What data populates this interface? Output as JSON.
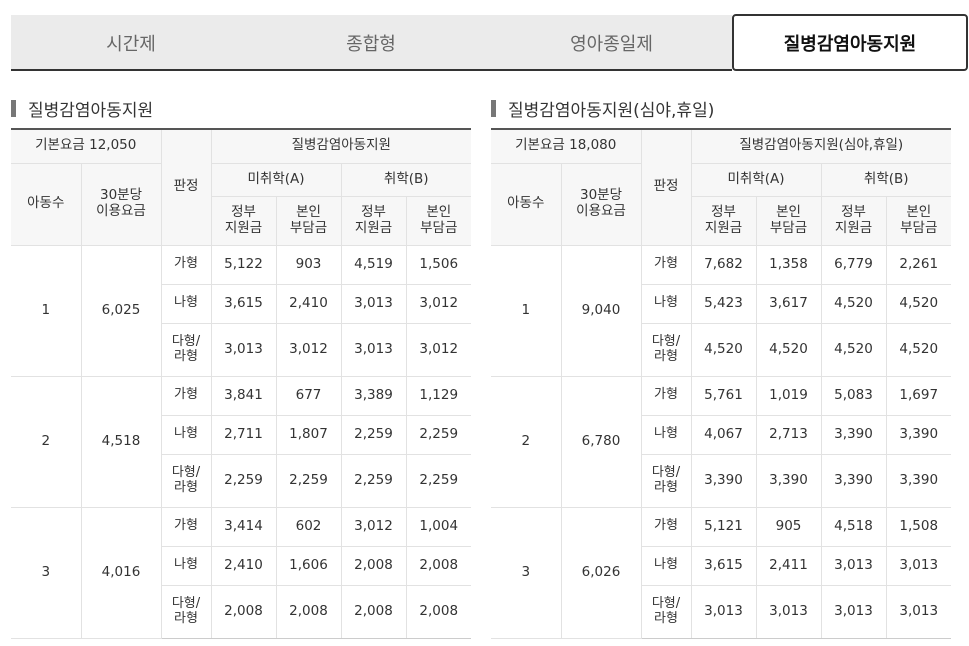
{
  "tabs": [
    {
      "label": "시간제"
    },
    {
      "label": "종합형"
    },
    {
      "label": "영아종일제"
    },
    {
      "label": "질병감염아동지원"
    }
  ],
  "sections": [
    {
      "title": "질병감염아동지원",
      "base_fee": "기본요금 12,050",
      "group_header": "질병감염아동지원",
      "col_children": "아동수",
      "col_fee": "30분당\n이용요금",
      "col_grade": "판정",
      "col_a": "미취학(A)",
      "col_b": "취학(B)",
      "col_gov": "정부\n지원금",
      "col_self": "본인\n부담금",
      "groups": [
        {
          "children": "1",
          "fee": "6,025",
          "rows": [
            {
              "grade": "가형",
              "a_gov": "5,122",
              "a_self": "903",
              "b_gov": "4,519",
              "b_self": "1,506"
            },
            {
              "grade": "나형",
              "a_gov": "3,615",
              "a_self": "2,410",
              "b_gov": "3,013",
              "b_self": "3,012"
            },
            {
              "grade": "다형/\n라형",
              "a_gov": "3,013",
              "a_self": "3,012",
              "b_gov": "3,013",
              "b_self": "3,012"
            }
          ]
        },
        {
          "children": "2",
          "fee": "4,518",
          "rows": [
            {
              "grade": "가형",
              "a_gov": "3,841",
              "a_self": "677",
              "b_gov": "3,389",
              "b_self": "1,129"
            },
            {
              "grade": "나형",
              "a_gov": "2,711",
              "a_self": "1,807",
              "b_gov": "2,259",
              "b_self": "2,259"
            },
            {
              "grade": "다형/\n라형",
              "a_gov": "2,259",
              "a_self": "2,259",
              "b_gov": "2,259",
              "b_self": "2,259"
            }
          ]
        },
        {
          "children": "3",
          "fee": "4,016",
          "rows": [
            {
              "grade": "가형",
              "a_gov": "3,414",
              "a_self": "602",
              "b_gov": "3,012",
              "b_self": "1,004"
            },
            {
              "grade": "나형",
              "a_gov": "2,410",
              "a_self": "1,606",
              "b_gov": "2,008",
              "b_self": "2,008"
            },
            {
              "grade": "다형/\n라형",
              "a_gov": "2,008",
              "a_self": "2,008",
              "b_gov": "2,008",
              "b_self": "2,008"
            }
          ]
        }
      ]
    },
    {
      "title": "질병감염아동지원(심야,휴일)",
      "base_fee": "기본요금 18,080",
      "group_header": "질병감염아동지원(심야,휴일)",
      "col_children": "아동수",
      "col_fee": "30분당\n이용요금",
      "col_grade": "판정",
      "col_a": "미취학(A)",
      "col_b": "취학(B)",
      "col_gov": "정부\n지원금",
      "col_self": "본인\n부담금",
      "groups": [
        {
          "children": "1",
          "fee": "9,040",
          "rows": [
            {
              "grade": "가형",
              "a_gov": "7,682",
              "a_self": "1,358",
              "b_gov": "6,779",
              "b_self": "2,261"
            },
            {
              "grade": "나형",
              "a_gov": "5,423",
              "a_self": "3,617",
              "b_gov": "4,520",
              "b_self": "4,520"
            },
            {
              "grade": "다형/\n라형",
              "a_gov": "4,520",
              "a_self": "4,520",
              "b_gov": "4,520",
              "b_self": "4,520"
            }
          ]
        },
        {
          "children": "2",
          "fee": "6,780",
          "rows": [
            {
              "grade": "가형",
              "a_gov": "5,761",
              "a_self": "1,019",
              "b_gov": "5,083",
              "b_self": "1,697"
            },
            {
              "grade": "나형",
              "a_gov": "4,067",
              "a_self": "2,713",
              "b_gov": "3,390",
              "b_self": "3,390"
            },
            {
              "grade": "다형/\n라형",
              "a_gov": "3,390",
              "a_self": "3,390",
              "b_gov": "3,390",
              "b_self": "3,390"
            }
          ]
        },
        {
          "children": "3",
          "fee": "6,026",
          "rows": [
            {
              "grade": "가형",
              "a_gov": "5,121",
              "a_self": "905",
              "b_gov": "4,518",
              "b_self": "1,508"
            },
            {
              "grade": "나형",
              "a_gov": "3,615",
              "a_self": "2,411",
              "b_gov": "3,013",
              "b_self": "3,013"
            },
            {
              "grade": "다형/\n라형",
              "a_gov": "3,013",
              "a_self": "3,013",
              "b_gov": "3,013",
              "b_self": "3,013"
            }
          ]
        }
      ]
    }
  ]
}
